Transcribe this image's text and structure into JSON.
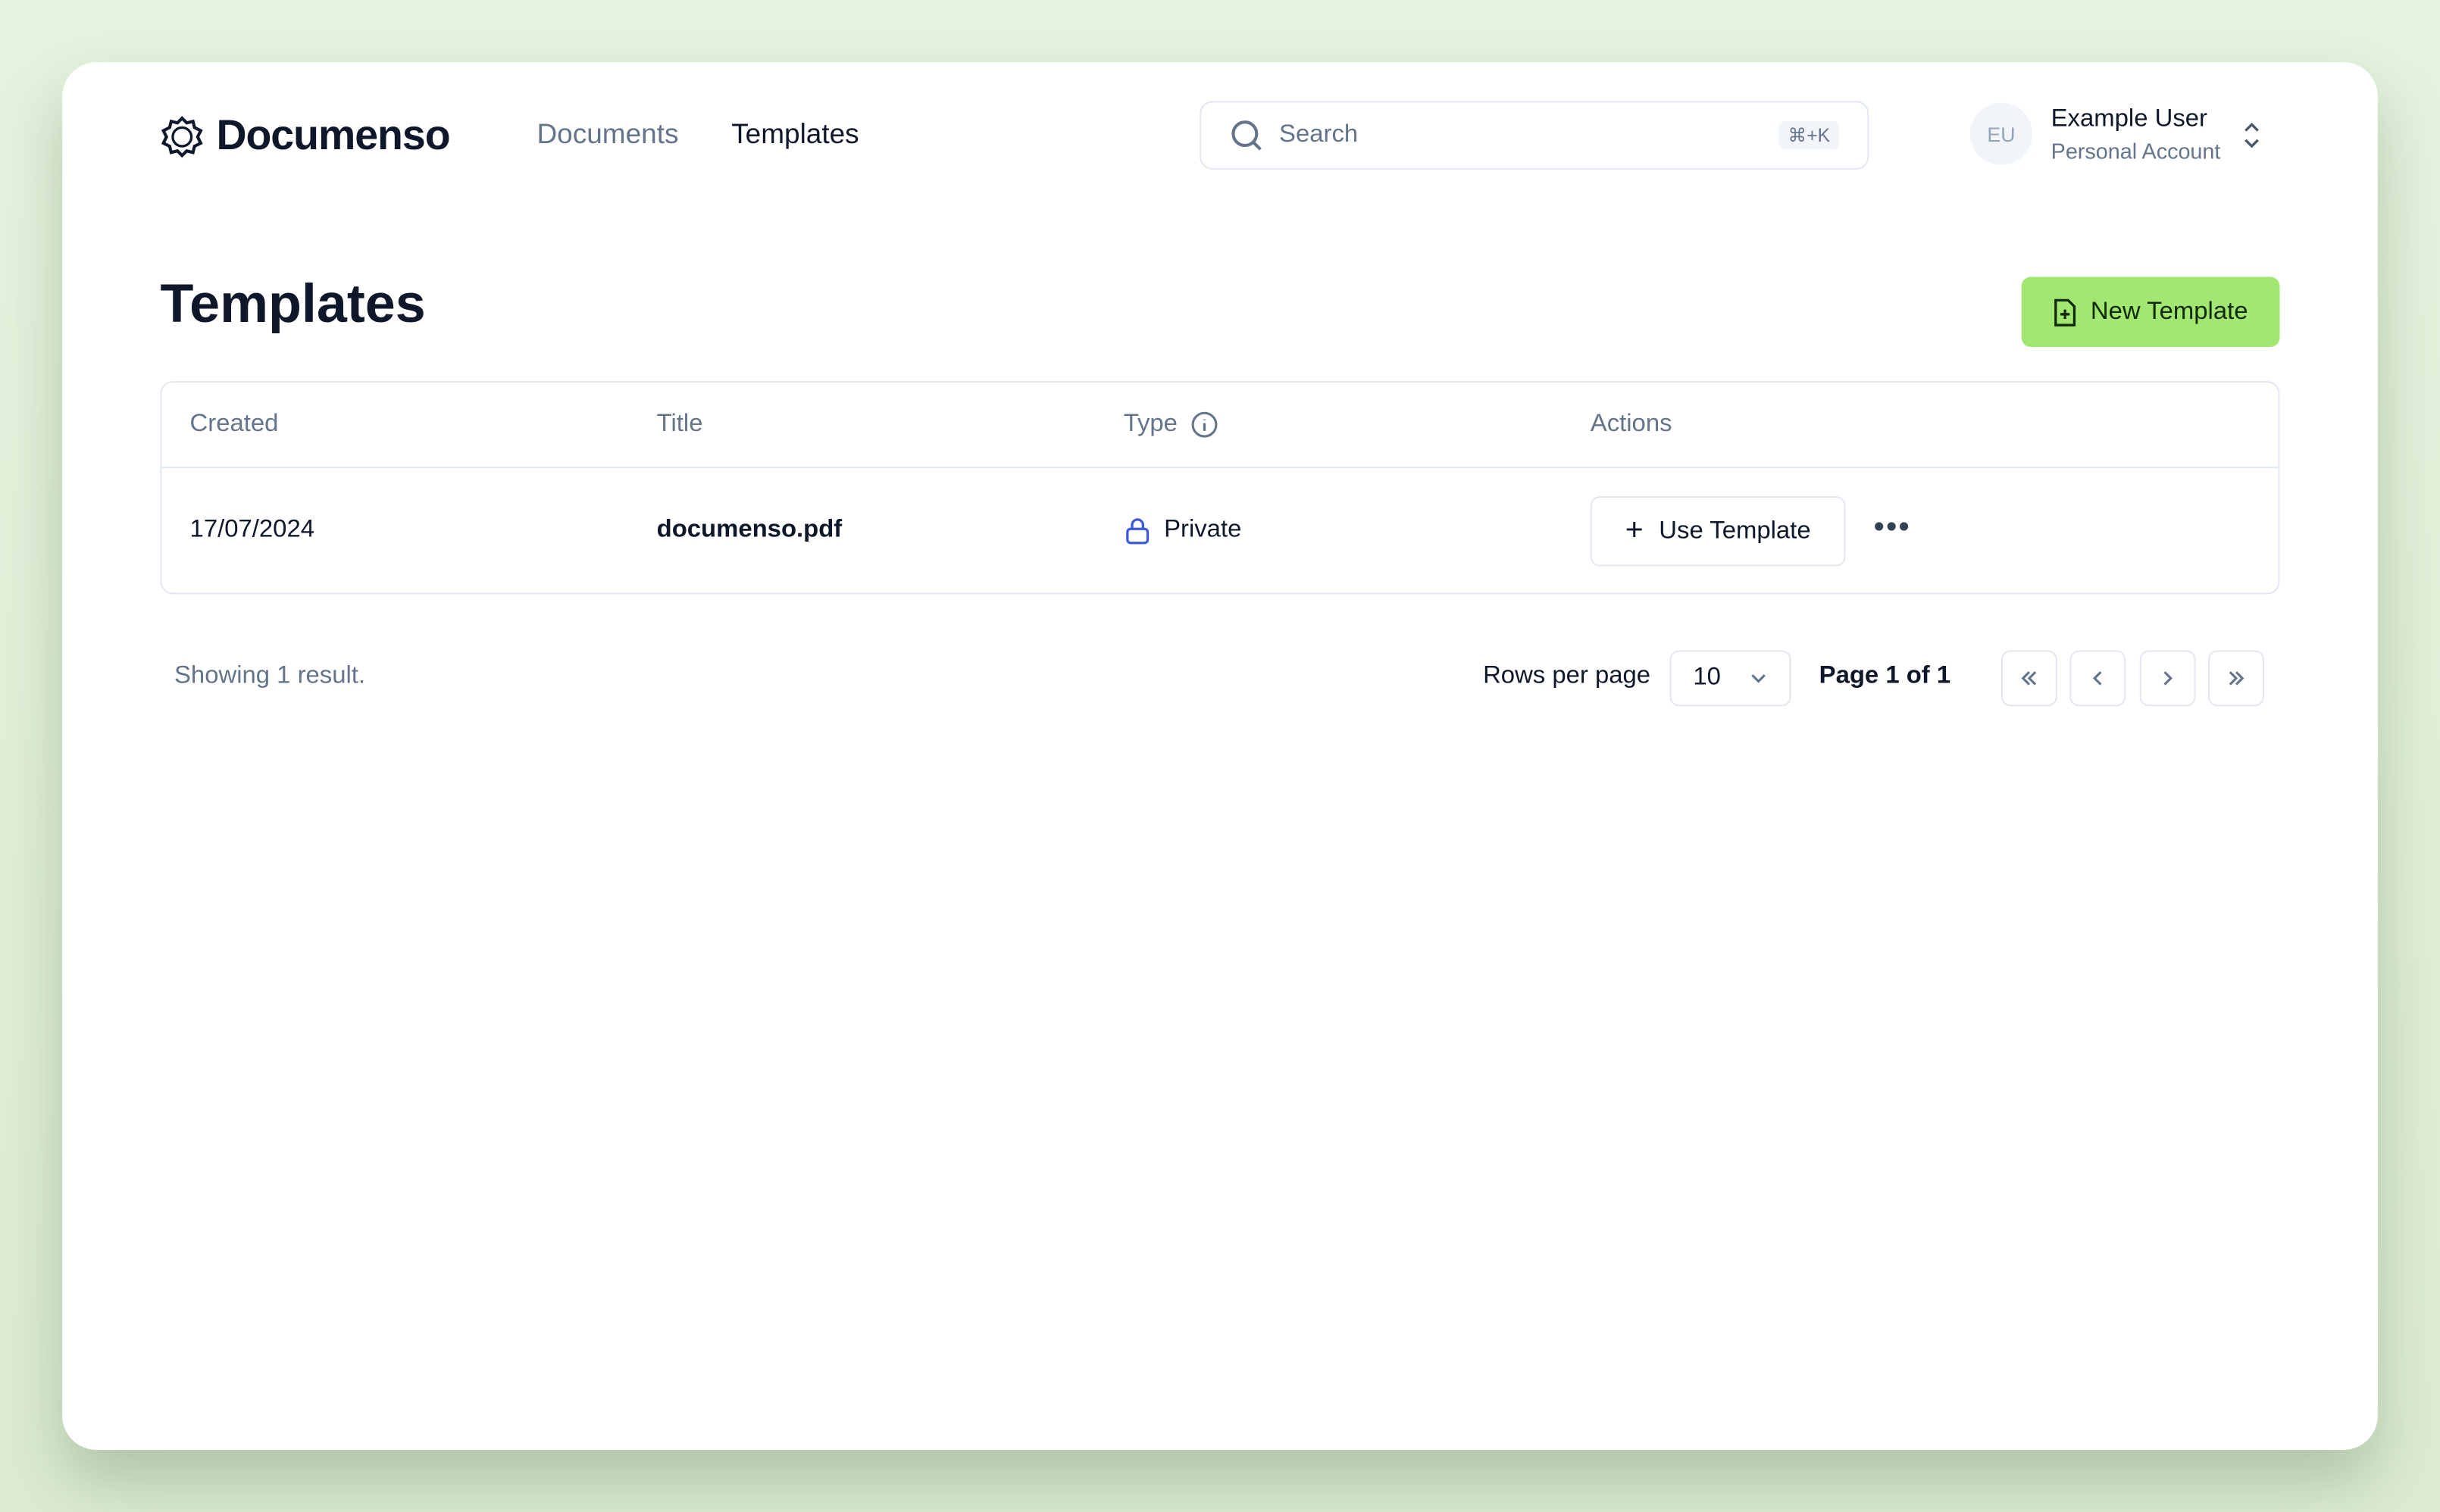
{
  "brand": {
    "name": "Documenso"
  },
  "nav": [
    {
      "label": "Documents",
      "active": false
    },
    {
      "label": "Templates",
      "active": true
    }
  ],
  "search": {
    "placeholder": "Search",
    "shortcut": "⌘+K"
  },
  "user": {
    "initials": "EU",
    "name": "Example User",
    "account": "Personal Account"
  },
  "page": {
    "title": "Templates",
    "new_button": "New Template"
  },
  "table": {
    "headers": [
      "Created",
      "Title",
      "Type",
      "Actions"
    ],
    "rows": [
      {
        "created": "17/07/2024",
        "title": "documenso.pdf",
        "type": "Private",
        "action": "Use Template"
      }
    ]
  },
  "footer": {
    "showing": "Showing 1 result.",
    "rows_per_page_label": "Rows per page",
    "rows_per_page": "10",
    "page_info": "Page 1 of 1"
  },
  "colors": {
    "accent": "#a3e773",
    "background": "#e3f1dc",
    "private_icon": "#3b5bdb"
  }
}
